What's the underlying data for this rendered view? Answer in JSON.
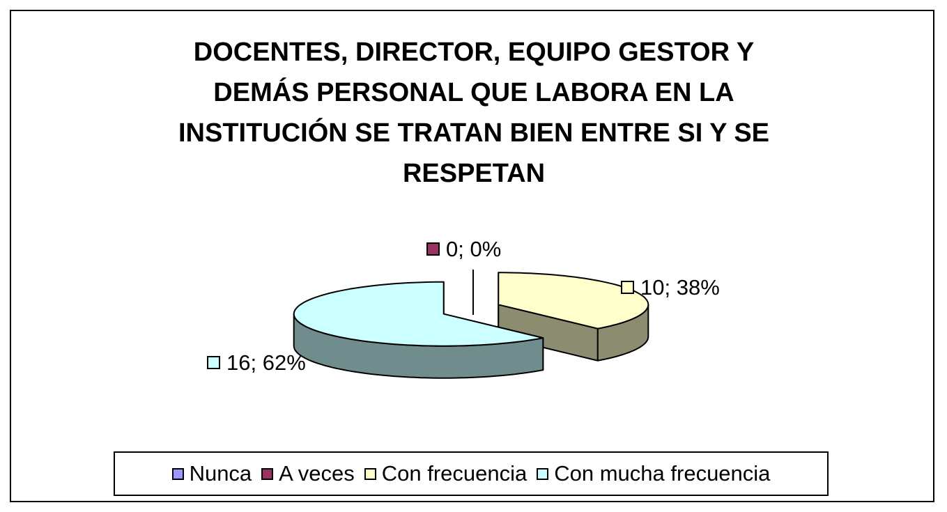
{
  "chart_data": {
    "type": "pie",
    "title_lines": [
      "DOCENTES, DIRECTOR,  EQUIPO GESTOR Y",
      "DEMÁS PERSONAL QUE LABORA EN LA",
      "INSTITUCIÓN SE TRATAN BIEN ENTRE SI Y SE",
      "RESPETAN"
    ],
    "style": "3d-exploded",
    "slices": [
      {
        "name": "Nunca",
        "value": 0,
        "percent": 0,
        "color": "#9999FF",
        "label": ""
      },
      {
        "name": "A veces",
        "value": 0,
        "percent": 0,
        "color": "#993366",
        "label": "0; 0%"
      },
      {
        "name": "Con frecuencia",
        "value": 10,
        "percent": 38,
        "color": "#FFFFCC",
        "label": "10; 38%"
      },
      {
        "name": "Con mucha frecuencia",
        "value": 16,
        "percent": 62,
        "color": "#CCFFFF",
        "label": "16; 62%"
      }
    ],
    "legend_position": "bottom"
  }
}
